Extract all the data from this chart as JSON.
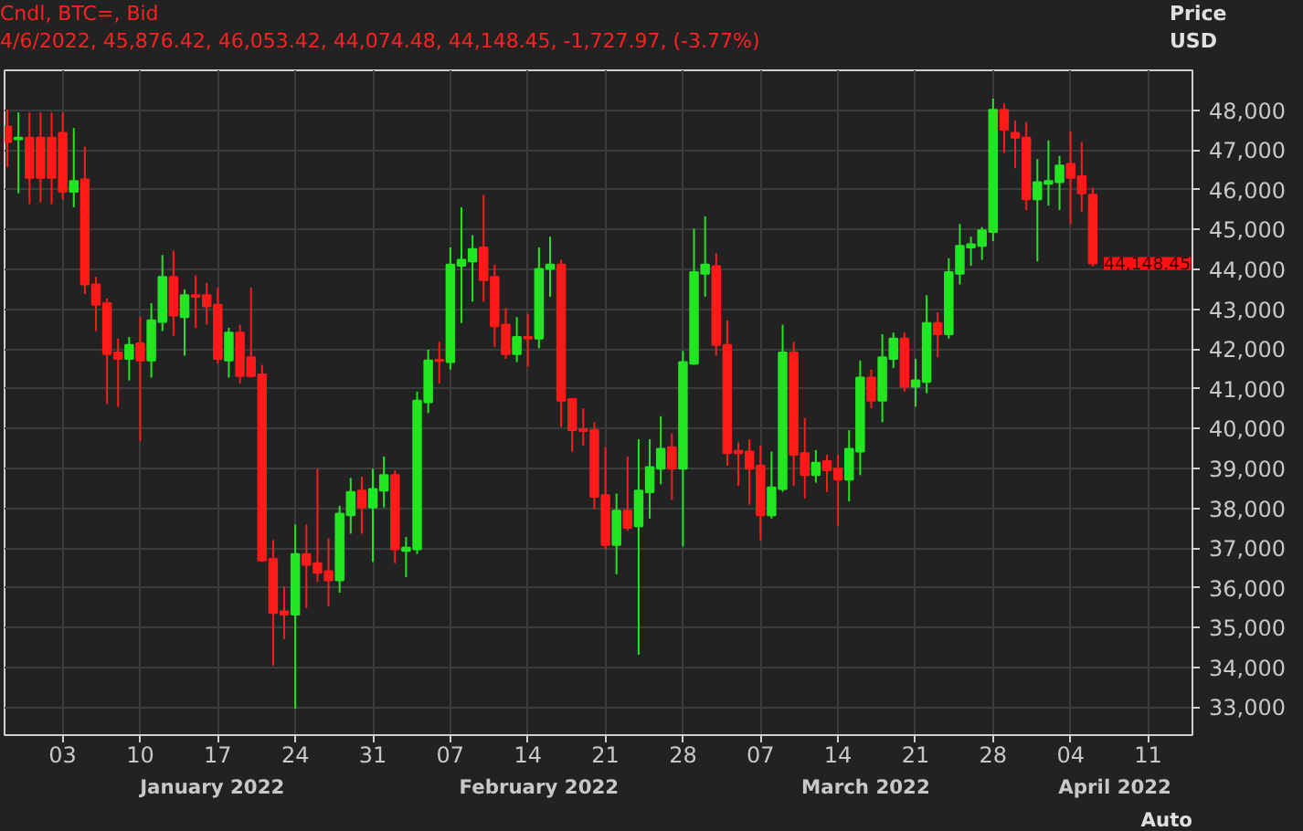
{
  "chart_data": {
    "type": "candlestick",
    "title": "Cndl, BTC=, Bid",
    "subtitle": "4/6/2022, 45,876.42, 46,053.42, 44,074.48, 44,148.45, -1,727.97, (-3.77%)",
    "ylabel": "Price USD",
    "colors": [
      "#ff1a1a",
      "#22e622",
      "#ff1a1a",
      "#ff1a1a",
      "#ff1a1a",
      "#ff1a1a",
      "#22e622",
      "#ff1a1a",
      "#ff1a1a",
      "#ff1a1a",
      "#ff1a1a",
      "#22e622",
      "#ff1a1a",
      "#22e622",
      "#22e622",
      "#ff1a1a",
      "#22e622",
      "#ff1a1a",
      "#ff1a1a",
      "#ff1a1a",
      "#22e622",
      "#ff1a1a",
      "#ff1a1a",
      "#ff1a1a",
      "#ff1a1a",
      "#ff1a1a",
      "#22e622",
      "#ff1a1a",
      "#ff1a1a",
      "#ff1a1a",
      "#22e622",
      "#22e622",
      "#ff1a1a",
      "#22e622",
      "#22e622",
      "#ff1a1a",
      "#22e622",
      "#22e622",
      "#22e622",
      "#ff1a1a",
      "#22e622",
      "#22e622",
      "#22e622",
      "#ff1a1a",
      "#ff1a1a",
      "#ff1a1a",
      "#22e622",
      "#ff1a1a",
      "#22e622",
      "#22e622",
      "#ff1a1a",
      "#ff1a1a",
      "#ff1a1a",
      "#ff1a1a",
      "#ff1a1a",
      "#22e622",
      "#ff1a1a",
      "#22e622",
      "#22e622",
      "#22e622",
      "#ff1a1a",
      "#22e622",
      "#22e622",
      "#22e622",
      "#ff1a1a",
      "#ff1a1a",
      "#ff1a1a",
      "#ff1a1a",
      "#ff1a1a",
      "#22e622",
      "#22e622",
      "#ff1a1a",
      "#ff1a1a",
      "#22e622",
      "#ff1a1a",
      "#ff1a1a",
      "#22e622",
      "#22e622",
      "#ff1a1a",
      "#22e622",
      "#22e622",
      "#ff1a1a",
      "#22e622",
      "#22e622",
      "#ff1a1a",
      "#22e622",
      "#22e622",
      "#22e622",
      "#22e622",
      "#22e622",
      "#ff1a1a",
      "#ff1a1a",
      "#ff1a1a",
      "#22e622",
      "#22e622",
      "#22e622",
      "#ff1a1a",
      "#ff1a1a",
      "#ff1a1a"
    ],
    "x": [
      "2021-12-29",
      "2021-12-30",
      "2021-12-31",
      "2022-01-01",
      "2022-01-02",
      "2022-01-03",
      "2022-01-04",
      "2022-01-05",
      "2022-01-06",
      "2022-01-07",
      "2022-01-08",
      "2022-01-09",
      "2022-01-10",
      "2022-01-11",
      "2022-01-12",
      "2022-01-13",
      "2022-01-14",
      "2022-01-15",
      "2022-01-16",
      "2022-01-17",
      "2022-01-18",
      "2022-01-19",
      "2022-01-20",
      "2022-01-21",
      "2022-01-22",
      "2022-01-23",
      "2022-01-24",
      "2022-01-25",
      "2022-01-26",
      "2022-01-27",
      "2022-01-28",
      "2022-01-29",
      "2022-01-30",
      "2022-01-31",
      "2022-02-01",
      "2022-02-02",
      "2022-02-03",
      "2022-02-04",
      "2022-02-05",
      "2022-02-06",
      "2022-02-07",
      "2022-02-08",
      "2022-02-09",
      "2022-02-10",
      "2022-02-11",
      "2022-02-12",
      "2022-02-13",
      "2022-02-14",
      "2022-02-15",
      "2022-02-16",
      "2022-02-17",
      "2022-02-18",
      "2022-02-19",
      "2022-02-20",
      "2022-02-21",
      "2022-02-22",
      "2022-02-23",
      "2022-02-24",
      "2022-02-25",
      "2022-02-26",
      "2022-02-27",
      "2022-02-28",
      "2022-03-01",
      "2022-03-02",
      "2022-03-03",
      "2022-03-04",
      "2022-03-05",
      "2022-03-06",
      "2022-03-07",
      "2022-03-08",
      "2022-03-09",
      "2022-03-10",
      "2022-03-11",
      "2022-03-12",
      "2022-03-13",
      "2022-03-14",
      "2022-03-15",
      "2022-03-16",
      "2022-03-17",
      "2022-03-18",
      "2022-03-19",
      "2022-03-20",
      "2022-03-21",
      "2022-03-22",
      "2022-03-23",
      "2022-03-24",
      "2022-03-25",
      "2022-03-26",
      "2022-03-27",
      "2022-03-28",
      "2022-03-29",
      "2022-03-30",
      "2022-03-31",
      "2022-04-01",
      "2022-04-02",
      "2022-04-03",
      "2022-04-04",
      "2022-04-05",
      "2022-04-06"
    ],
    "ohlc": [
      [
        47590,
        48010,
        46570,
        47200
      ],
      [
        47270,
        47940,
        45910,
        47310
      ],
      [
        47310,
        47940,
        45640,
        46300
      ],
      [
        47310,
        47940,
        45680,
        46300
      ],
      [
        47310,
        47940,
        45640,
        46300
      ],
      [
        47430,
        47940,
        45760,
        45950
      ],
      [
        45950,
        47550,
        45560,
        46220
      ],
      [
        46260,
        47080,
        43380,
        43620
      ],
      [
        43620,
        43810,
        42450,
        43110
      ],
      [
        43150,
        43270,
        40620,
        41870
      ],
      [
        41910,
        42260,
        40550,
        41750
      ],
      [
        41750,
        42300,
        41210,
        42100
      ],
      [
        42140,
        42800,
        39690,
        41710
      ],
      [
        41710,
        43150,
        41280,
        42720
      ],
      [
        42680,
        44360,
        42450,
        43810
      ],
      [
        43810,
        44470,
        42330,
        42840
      ],
      [
        42800,
        43500,
        41830,
        43350
      ],
      [
        43350,
        43850,
        42530,
        43310
      ],
      [
        43350,
        43660,
        42610,
        43070
      ],
      [
        43110,
        43540,
        41630,
        41750
      ],
      [
        41710,
        42530,
        41280,
        42410
      ],
      [
        42410,
        42610,
        41130,
        41320
      ],
      [
        41790,
        43540,
        41280,
        41320
      ],
      [
        41360,
        41600,
        36650,
        36690
      ],
      [
        36730,
        37200,
        34050,
        35370
      ],
      [
        35410,
        36030,
        34710,
        35330
      ],
      [
        35330,
        37590,
        32960,
        36850
      ],
      [
        36850,
        37590,
        35490,
        36580
      ],
      [
        36620,
        38990,
        36150,
        36380
      ],
      [
        36420,
        37240,
        35530,
        36190
      ],
      [
        36190,
        38060,
        35880,
        37860
      ],
      [
        37820,
        38760,
        37360,
        38410
      ],
      [
        38440,
        38790,
        37360,
        38020
      ],
      [
        38020,
        38990,
        36650,
        38480
      ],
      [
        38440,
        39300,
        38020,
        38830
      ],
      [
        38830,
        38950,
        36620,
        36970
      ],
      [
        36930,
        37280,
        36270,
        37010
      ],
      [
        36970,
        40930,
        36850,
        40700
      ],
      [
        40660,
        41980,
        40390,
        41710
      ],
      [
        41730,
        42180,
        41130,
        41700
      ],
      [
        41670,
        44550,
        41480,
        44120
      ],
      [
        44090,
        45560,
        42650,
        44240
      ],
      [
        44200,
        44860,
        43190,
        44510
      ],
      [
        44550,
        45870,
        43190,
        43730
      ],
      [
        43810,
        44120,
        42060,
        42570
      ],
      [
        42610,
        43030,
        41750,
        41870
      ],
      [
        41870,
        42800,
        41670,
        42300
      ],
      [
        42300,
        42880,
        41560,
        42260
      ],
      [
        42260,
        44550,
        42020,
        44010
      ],
      [
        44010,
        44820,
        43310,
        44120
      ],
      [
        44120,
        44240,
        40040,
        40700
      ],
      [
        40740,
        40760,
        39420,
        39960
      ],
      [
        39980,
        40510,
        39570,
        39940
      ],
      [
        39960,
        40160,
        37980,
        38290
      ],
      [
        38330,
        39530,
        36970,
        37080
      ],
      [
        37080,
        38370,
        36340,
        37940
      ],
      [
        37940,
        39300,
        37430,
        37510
      ],
      [
        37550,
        39730,
        34320,
        38440
      ],
      [
        38400,
        39730,
        37740,
        39030
      ],
      [
        38990,
        40310,
        38600,
        39490
      ],
      [
        39530,
        39880,
        38210,
        38990
      ],
      [
        38990,
        41950,
        37040,
        41670
      ],
      [
        41630,
        45020,
        41600,
        43930
      ],
      [
        43890,
        45330,
        43310,
        44120
      ],
      [
        44080,
        44400,
        41830,
        42100
      ],
      [
        42100,
        42720,
        39070,
        39380
      ],
      [
        39440,
        39650,
        38560,
        39380
      ],
      [
        39420,
        39730,
        38090,
        38990
      ],
      [
        39070,
        39570,
        37200,
        37820
      ],
      [
        37820,
        39420,
        37740,
        38520
      ],
      [
        38480,
        42610,
        38410,
        41910
      ],
      [
        41910,
        42180,
        38560,
        39340
      ],
      [
        39380,
        40270,
        38250,
        38830
      ],
      [
        38830,
        39460,
        38640,
        39140
      ],
      [
        39180,
        39340,
        38410,
        38950
      ],
      [
        38990,
        39340,
        37550,
        38720
      ],
      [
        38720,
        39960,
        38170,
        39490
      ],
      [
        39420,
        41710,
        38830,
        41280
      ],
      [
        41280,
        41480,
        40510,
        40700
      ],
      [
        40700,
        42370,
        40160,
        41790
      ],
      [
        41750,
        42410,
        41520,
        42260
      ],
      [
        42260,
        42410,
        40930,
        41050
      ],
      [
        41050,
        41750,
        40550,
        41210
      ],
      [
        41170,
        43350,
        40890,
        42650
      ],
      [
        42650,
        42920,
        41790,
        42370
      ],
      [
        42370,
        44280,
        42260,
        43930
      ],
      [
        43890,
        45140,
        43620,
        44590
      ],
      [
        44550,
        44820,
        44090,
        44630
      ],
      [
        44590,
        45060,
        44240,
        44980
      ],
      [
        44940,
        48290,
        44710,
        48010
      ],
      [
        48010,
        48170,
        46920,
        47510
      ],
      [
        47430,
        47740,
        46540,
        47310
      ],
      [
        47310,
        47700,
        45490,
        45760
      ],
      [
        45760,
        46770,
        44200,
        46190
      ],
      [
        46150,
        47240,
        45600,
        46220
      ],
      [
        46190,
        46850,
        45490,
        46610
      ],
      [
        46650,
        47470,
        45140,
        46300
      ],
      [
        46340,
        47200,
        45450,
        45910
      ],
      [
        45876.42,
        46053.42,
        44074.48,
        44148.45
      ]
    ],
    "xlim": [
      "2021-12-28T18:00",
      "2022-04-15"
    ],
    "xticks": [
      {
        "value": "2022-01-03",
        "label": "03"
      },
      {
        "value": "2022-01-10",
        "label": "10"
      },
      {
        "value": "2022-01-17",
        "label": "17"
      },
      {
        "value": "2022-01-24",
        "label": "24"
      },
      {
        "value": "2022-01-31",
        "label": "31"
      },
      {
        "value": "2022-02-07",
        "label": "07"
      },
      {
        "value": "2022-02-14",
        "label": "14"
      },
      {
        "value": "2022-02-21",
        "label": "21"
      },
      {
        "value": "2022-02-28",
        "label": "28"
      },
      {
        "value": "2022-03-07",
        "label": "07"
      },
      {
        "value": "2022-03-14",
        "label": "14"
      },
      {
        "value": "2022-03-21",
        "label": "21"
      },
      {
        "value": "2022-03-28",
        "label": "28"
      },
      {
        "value": "2022-04-04",
        "label": "04"
      },
      {
        "value": "2022-04-11",
        "label": "11"
      }
    ],
    "ylim": [
      32300,
      49000
    ],
    "yticks": [
      {
        "value": 33000,
        "label": "33,000"
      },
      {
        "value": 34000,
        "label": "34,000"
      },
      {
        "value": 35000,
        "label": "35,000"
      },
      {
        "value": 36000,
        "label": "36,000"
      },
      {
        "value": 37000,
        "label": "37,000"
      },
      {
        "value": 38000,
        "label": "38,000"
      },
      {
        "value": 39000,
        "label": "39,000"
      },
      {
        "value": 40000,
        "label": "40,000"
      },
      {
        "value": 41000,
        "label": "41,000"
      },
      {
        "value": 42000,
        "label": "42,000"
      },
      {
        "value": 43000,
        "label": "43,000"
      },
      {
        "value": 44000,
        "label": "44,000"
      },
      {
        "value": 45000,
        "label": "45,000"
      },
      {
        "value": 46000,
        "label": "46,000"
      },
      {
        "value": 47000,
        "label": "47,000"
      },
      {
        "value": 48000,
        "label": "48,000"
      }
    ],
    "grid": true,
    "annotations": [
      "44,148.45",
      "January 2022",
      "February 2022",
      "March 2022",
      "April 2022",
      "Auto"
    ]
  }
}
